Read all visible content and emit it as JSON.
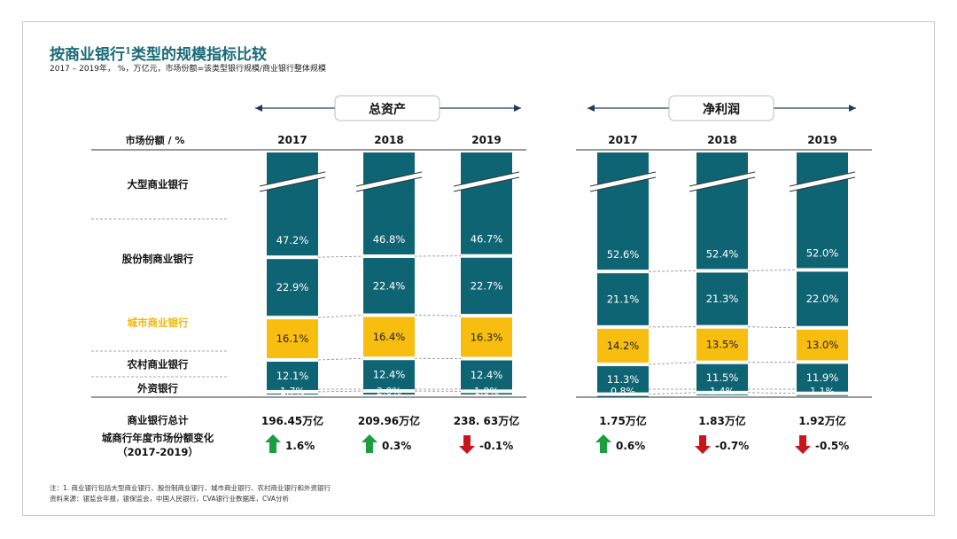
{
  "title": "按商业银行",
  "title_sup": "1",
  "title_rest": "类型的规模指标比较",
  "subtitle": "2017 – 2019年， %，万亿元，市场份额=该类型银行规模/商业银行整体规模",
  "colors": {
    "teal": "#0f6474",
    "yellow": "#f7bd0f",
    "green": "#1a9e3f",
    "red": "#c8161d",
    "title": "#1a6a78",
    "highlight": "#f2b705"
  },
  "row_header": "市场份额 / %",
  "row_labels": [
    "大型商业银行",
    "股份制商业银行",
    "城市商业银行",
    "农村商业银行",
    "外资银行"
  ],
  "highlight_row": 2,
  "total_label": "商业银行总计",
  "change_label_line1": "城商行年度市场份额变化",
  "change_label_line2": "（2017-2019）",
  "chart_data": [
    {
      "type": "bar",
      "title": "总资产",
      "categories": [
        "2017",
        "2018",
        "2019"
      ],
      "series": [
        {
          "name": "大型商业银行",
          "values": [
            47.2,
            46.8,
            46.7
          ]
        },
        {
          "name": "股份制商业银行",
          "values": [
            22.9,
            22.4,
            22.7
          ]
        },
        {
          "name": "城市商业银行",
          "values": [
            16.1,
            16.4,
            16.3
          ]
        },
        {
          "name": "农村商业银行",
          "values": [
            12.1,
            12.4,
            12.4
          ]
        },
        {
          "name": "外资银行",
          "values": [
            1.7,
            2.0,
            1.9
          ]
        }
      ],
      "labels": [
        [
          "47.2%",
          "22.9%",
          "16.1%",
          "12.1%",
          "1.7%"
        ],
        [
          "46.8%",
          "22.4%",
          "16.4%",
          "12.4%",
          "2.0%"
        ],
        [
          "46.7%",
          "22.7%",
          "16.3%",
          "12.4%",
          "1.9%"
        ]
      ],
      "totals": [
        "196.45万亿",
        "209.96万亿",
        "238. 63万亿"
      ],
      "changes": [
        {
          "dir": "up",
          "label": "1.6%"
        },
        {
          "dir": "up",
          "label": "0.3%"
        },
        {
          "dir": "down",
          "label": "-0.1%"
        }
      ]
    },
    {
      "type": "bar",
      "title": "净利润",
      "categories": [
        "2017",
        "2018",
        "2019"
      ],
      "series": [
        {
          "name": "大型商业银行",
          "values": [
            52.6,
            52.4,
            52.0
          ]
        },
        {
          "name": "股份制商业银行",
          "values": [
            21.1,
            21.3,
            22.0
          ]
        },
        {
          "name": "城市商业银行",
          "values": [
            14.2,
            13.5,
            13.0
          ]
        },
        {
          "name": "农村商业银行",
          "values": [
            11.3,
            11.5,
            11.9
          ]
        },
        {
          "name": "外资银行",
          "values": [
            0.8,
            1.4,
            1.1
          ]
        }
      ],
      "labels": [
        [
          "52.6%",
          "21.1%",
          "14.2%",
          "11.3%",
          "0.8%"
        ],
        [
          "52.4%",
          "21.3%",
          "13.5%",
          "11.5%",
          "1.4%"
        ],
        [
          "52.0%",
          "22.0%",
          "13.0%",
          "11.9%",
          "1.1%"
        ]
      ],
      "totals": [
        "1.75万亿",
        "1.83万亿",
        "1.92万亿"
      ],
      "changes": [
        {
          "dir": "up",
          "label": "0.6%"
        },
        {
          "dir": "down",
          "label": "-0.7%"
        },
        {
          "dir": "down",
          "label": "-0.5%"
        }
      ]
    }
  ],
  "footnote1": "注：1.  商业银行包括大型商业银行、股份制商业银行、城市商业银行、农村商业银行和外资银行",
  "footnote2": "资料来源：银监会年报，银保监会，中国人民银行，CVA银行业数据库，CVA分析"
}
